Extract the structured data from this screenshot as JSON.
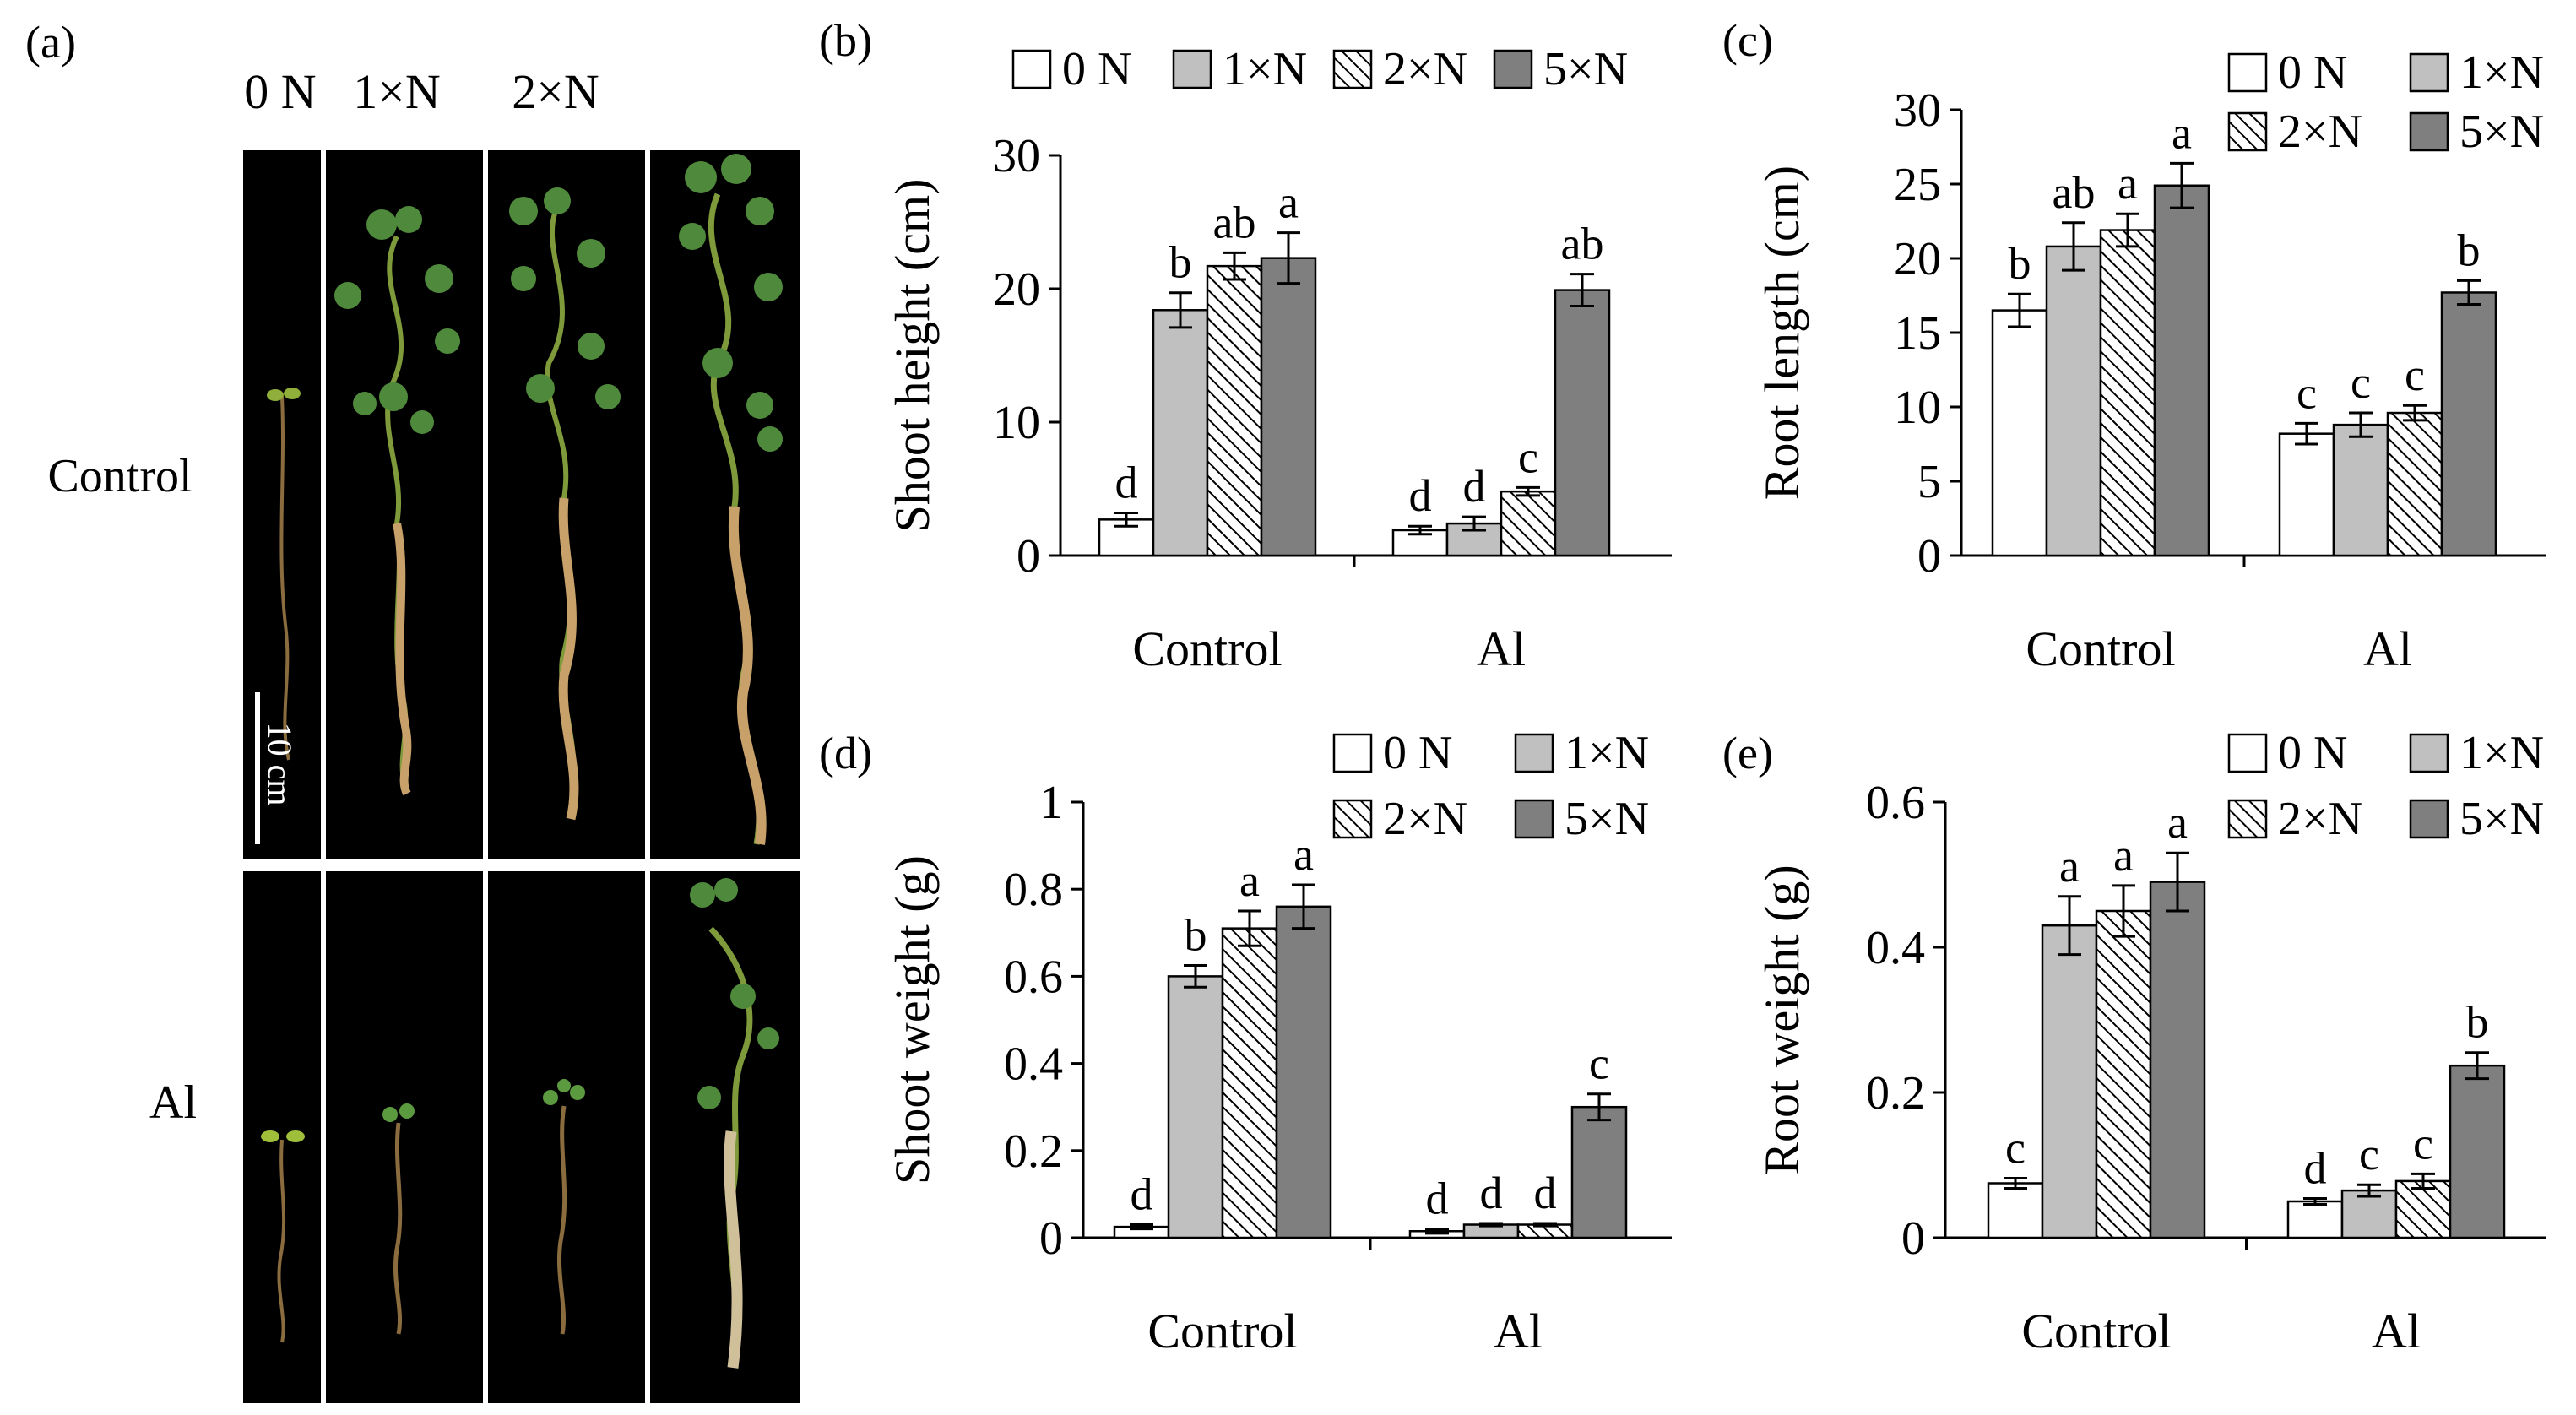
{
  "panel_a": {
    "label": "(a)",
    "column_labels": [
      "0 N",
      "1×N",
      "2×N",
      "5×N"
    ],
    "row_labels": [
      "Control",
      "Al"
    ],
    "scale_bar_label": "10 cm"
  },
  "colors": {
    "0 N": "#ffffff",
    "1×N": "#c0c0c0",
    "2×N": "hatch",
    "5×N": "#7f7f7f",
    "photo_bg": "#000000",
    "plant_green": "#4f8a3c",
    "root_tan": "#b8905a"
  },
  "chart_data": [
    {
      "id": "b",
      "type": "bar",
      "panel_label": "(b)",
      "title": "",
      "xlabel": "",
      "ylabel": "Shoot height (cm)",
      "ylim": [
        0,
        30
      ],
      "yticks": [
        "0",
        "10",
        "20",
        "30"
      ],
      "categories": [
        "Control",
        "Al"
      ],
      "legend_position": "top",
      "series": [
        {
          "name": "0 N",
          "values": [
            2.7,
            1.9
          ],
          "errors": [
            0.5,
            0.3
          ],
          "letters": [
            "d",
            "d"
          ]
        },
        {
          "name": "1×N",
          "values": [
            18.4,
            2.4
          ],
          "errors": [
            1.3,
            0.5
          ],
          "letters": [
            "b",
            "d"
          ]
        },
        {
          "name": "2×N",
          "values": [
            21.7,
            4.8
          ],
          "errors": [
            1.0,
            0.3
          ],
          "letters": [
            "ab",
            "c"
          ]
        },
        {
          "name": "5×N",
          "values": [
            22.3,
            19.9
          ],
          "errors": [
            1.9,
            1.2
          ],
          "letters": [
            "a",
            "ab"
          ]
        }
      ]
    },
    {
      "id": "c",
      "type": "bar",
      "panel_label": "(c)",
      "title": "",
      "xlabel": "",
      "ylabel": "Root length (cm)",
      "ylim": [
        0,
        30
      ],
      "yticks": [
        "0",
        "5",
        "10",
        "15",
        "20",
        "25",
        "30"
      ],
      "categories": [
        "Control",
        "Al"
      ],
      "legend_position": "top-right",
      "series": [
        {
          "name": "0 N",
          "values": [
            16.5,
            8.2
          ],
          "errors": [
            1.1,
            0.7
          ],
          "letters": [
            "b",
            "c"
          ]
        },
        {
          "name": "1×N",
          "values": [
            20.8,
            8.8
          ],
          "errors": [
            1.6,
            0.8
          ],
          "letters": [
            "ab",
            "c"
          ]
        },
        {
          "name": "2×N",
          "values": [
            21.9,
            9.6
          ],
          "errors": [
            1.1,
            0.5
          ],
          "letters": [
            "a",
            "c"
          ]
        },
        {
          "name": "5×N",
          "values": [
            24.9,
            17.7
          ],
          "errors": [
            1.5,
            0.8
          ],
          "letters": [
            "a",
            "b"
          ]
        }
      ]
    },
    {
      "id": "d",
      "type": "bar",
      "panel_label": "(d)",
      "title": "",
      "xlabel": "",
      "ylabel": "Shoot weight (g)",
      "ylim": [
        0,
        1
      ],
      "yticks": [
        "0",
        "0.2",
        "0.4",
        "0.6",
        "0.8",
        "1"
      ],
      "categories": [
        "Control",
        "Al"
      ],
      "legend_position": "top-right",
      "series": [
        {
          "name": "0 N",
          "values": [
            0.025,
            0.015
          ],
          "errors": [
            0.005,
            0.005
          ],
          "letters": [
            "d",
            "d"
          ]
        },
        {
          "name": "1×N",
          "values": [
            0.6,
            0.03
          ],
          "errors": [
            0.025,
            0.003
          ],
          "letters": [
            "b",
            "d"
          ]
        },
        {
          "name": "2×N",
          "values": [
            0.71,
            0.03
          ],
          "errors": [
            0.04,
            0.003
          ],
          "letters": [
            "a",
            "d"
          ]
        },
        {
          "name": "5×N",
          "values": [
            0.76,
            0.3
          ],
          "errors": [
            0.05,
            0.03
          ],
          "letters": [
            "a",
            "c"
          ]
        }
      ]
    },
    {
      "id": "e",
      "type": "bar",
      "panel_label": "(e)",
      "title": "",
      "xlabel": "",
      "ylabel": "Root weight (g)",
      "ylim": [
        0,
        0.6
      ],
      "yticks": [
        "0",
        "0.2",
        "0.4",
        "0.6"
      ],
      "categories": [
        "Control",
        "Al"
      ],
      "legend_position": "top-right",
      "series": [
        {
          "name": "0 N",
          "values": [
            0.075,
            0.05
          ],
          "errors": [
            0.007,
            0.004
          ],
          "letters": [
            "c",
            "d"
          ]
        },
        {
          "name": "1×N",
          "values": [
            0.43,
            0.065
          ],
          "errors": [
            0.04,
            0.008
          ],
          "letters": [
            "a",
            "c"
          ]
        },
        {
          "name": "2×N",
          "values": [
            0.45,
            0.078
          ],
          "errors": [
            0.035,
            0.01
          ],
          "letters": [
            "a",
            "c"
          ]
        },
        {
          "name": "5×N",
          "values": [
            0.49,
            0.237
          ],
          "errors": [
            0.04,
            0.018
          ],
          "letters": [
            "a",
            "b"
          ]
        }
      ]
    }
  ]
}
